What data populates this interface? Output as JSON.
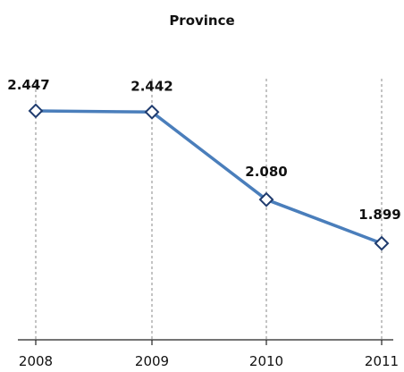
{
  "chart_data": {
    "type": "line",
    "title": "Province",
    "categories": [
      "2008",
      "2009",
      "2010",
      "2011"
    ],
    "series": [
      {
        "values": [
          2.447,
          2.442,
          2.08,
          1.899
        ],
        "color": "#4a7ebb"
      }
    ],
    "data_labels": [
      "2.447",
      "2.442",
      "2.080",
      "1.899"
    ],
    "marker": "diamond-outline",
    "vertical_gridlines": "dashed",
    "y_axis_visible": false
  }
}
